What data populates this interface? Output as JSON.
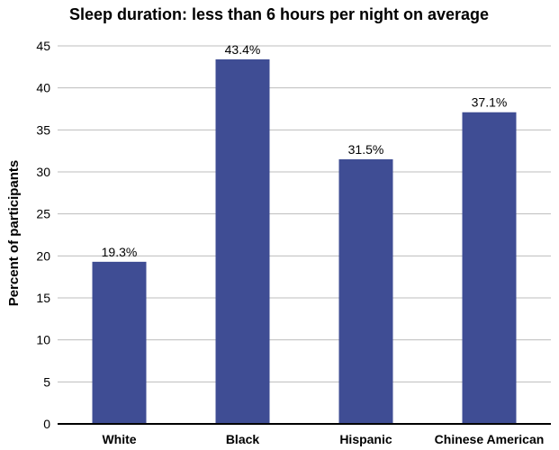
{
  "colors": {
    "bar": "#3f4d94",
    "grid": "#bdbdbd",
    "axis": "#000000"
  },
  "chart_data": {
    "type": "bar",
    "title": "Sleep duration: less than 6 hours per night on average",
    "xlabel": "",
    "ylabel": "Percent of participants",
    "categories": [
      "White",
      "Black",
      "Hispanic",
      "Chinese American"
    ],
    "values": [
      19.3,
      43.4,
      31.5,
      37.1
    ],
    "data_labels": [
      "19.3%",
      "43.4%",
      "31.5%",
      "37.1%"
    ],
    "ylim": [
      0,
      45
    ],
    "yticks": [
      0,
      5,
      10,
      15,
      20,
      25,
      30,
      35,
      40,
      45
    ],
    "grid": true,
    "legend": "none"
  }
}
